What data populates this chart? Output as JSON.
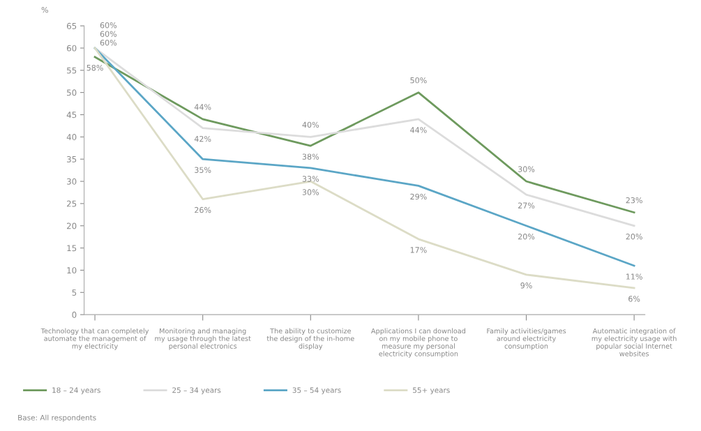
{
  "chart_data": {
    "type": "line",
    "ylabel": "%",
    "categories": [
      "Technology that can completely\nautomate the management of\nmy electricity",
      "Monitoring and managing\nmy usage through the latest\npersonal electronics",
      "The ability to customize\nthe design of the in-home\ndisplay",
      "Applications I can download\non my mobile phone to\nmeasure my personal\nelectricity consumption",
      "Family activities/games\naround electricity\nconsumption",
      "Automatic integration of\nmy electricity usage with\npopular social Internet\nwebsites"
    ],
    "series": [
      {
        "name": "18 – 24 years",
        "color": "#6e9a5e",
        "values": [
          58,
          44,
          38,
          50,
          30,
          23
        ],
        "value_labels": [
          "58%",
          "44%",
          "38%",
          "50%",
          "30%",
          "23%"
        ]
      },
      {
        "name": "25 – 34 years",
        "color": "#dcdcdc",
        "values": [
          60,
          42,
          40,
          44,
          27,
          20
        ],
        "value_labels": [
          "60%",
          "42%",
          "40%",
          "44%",
          "27%",
          "20%"
        ]
      },
      {
        "name": "35 – 54 years",
        "color": "#5ba6c6",
        "values": [
          60,
          35,
          33,
          29,
          20,
          11
        ],
        "value_labels": [
          "60%",
          "35%",
          "33%",
          "29%",
          "20%",
          "11%"
        ]
      },
      {
        "name": "55+ years",
        "color": "#dcdcc6",
        "values": [
          60,
          26,
          30,
          17,
          9,
          6
        ],
        "value_labels": [
          "60%",
          "26%",
          "30%",
          "17%",
          "9%",
          "6%"
        ]
      }
    ],
    "ylim": [
      0,
      65
    ],
    "yticks": [
      0,
      5,
      10,
      15,
      20,
      25,
      30,
      35,
      40,
      45,
      50,
      55,
      60,
      65
    ],
    "grid": false,
    "legend": "bottom",
    "marker": "none",
    "line_style": "solid",
    "annotations": [
      "Base: All respondents"
    ]
  }
}
